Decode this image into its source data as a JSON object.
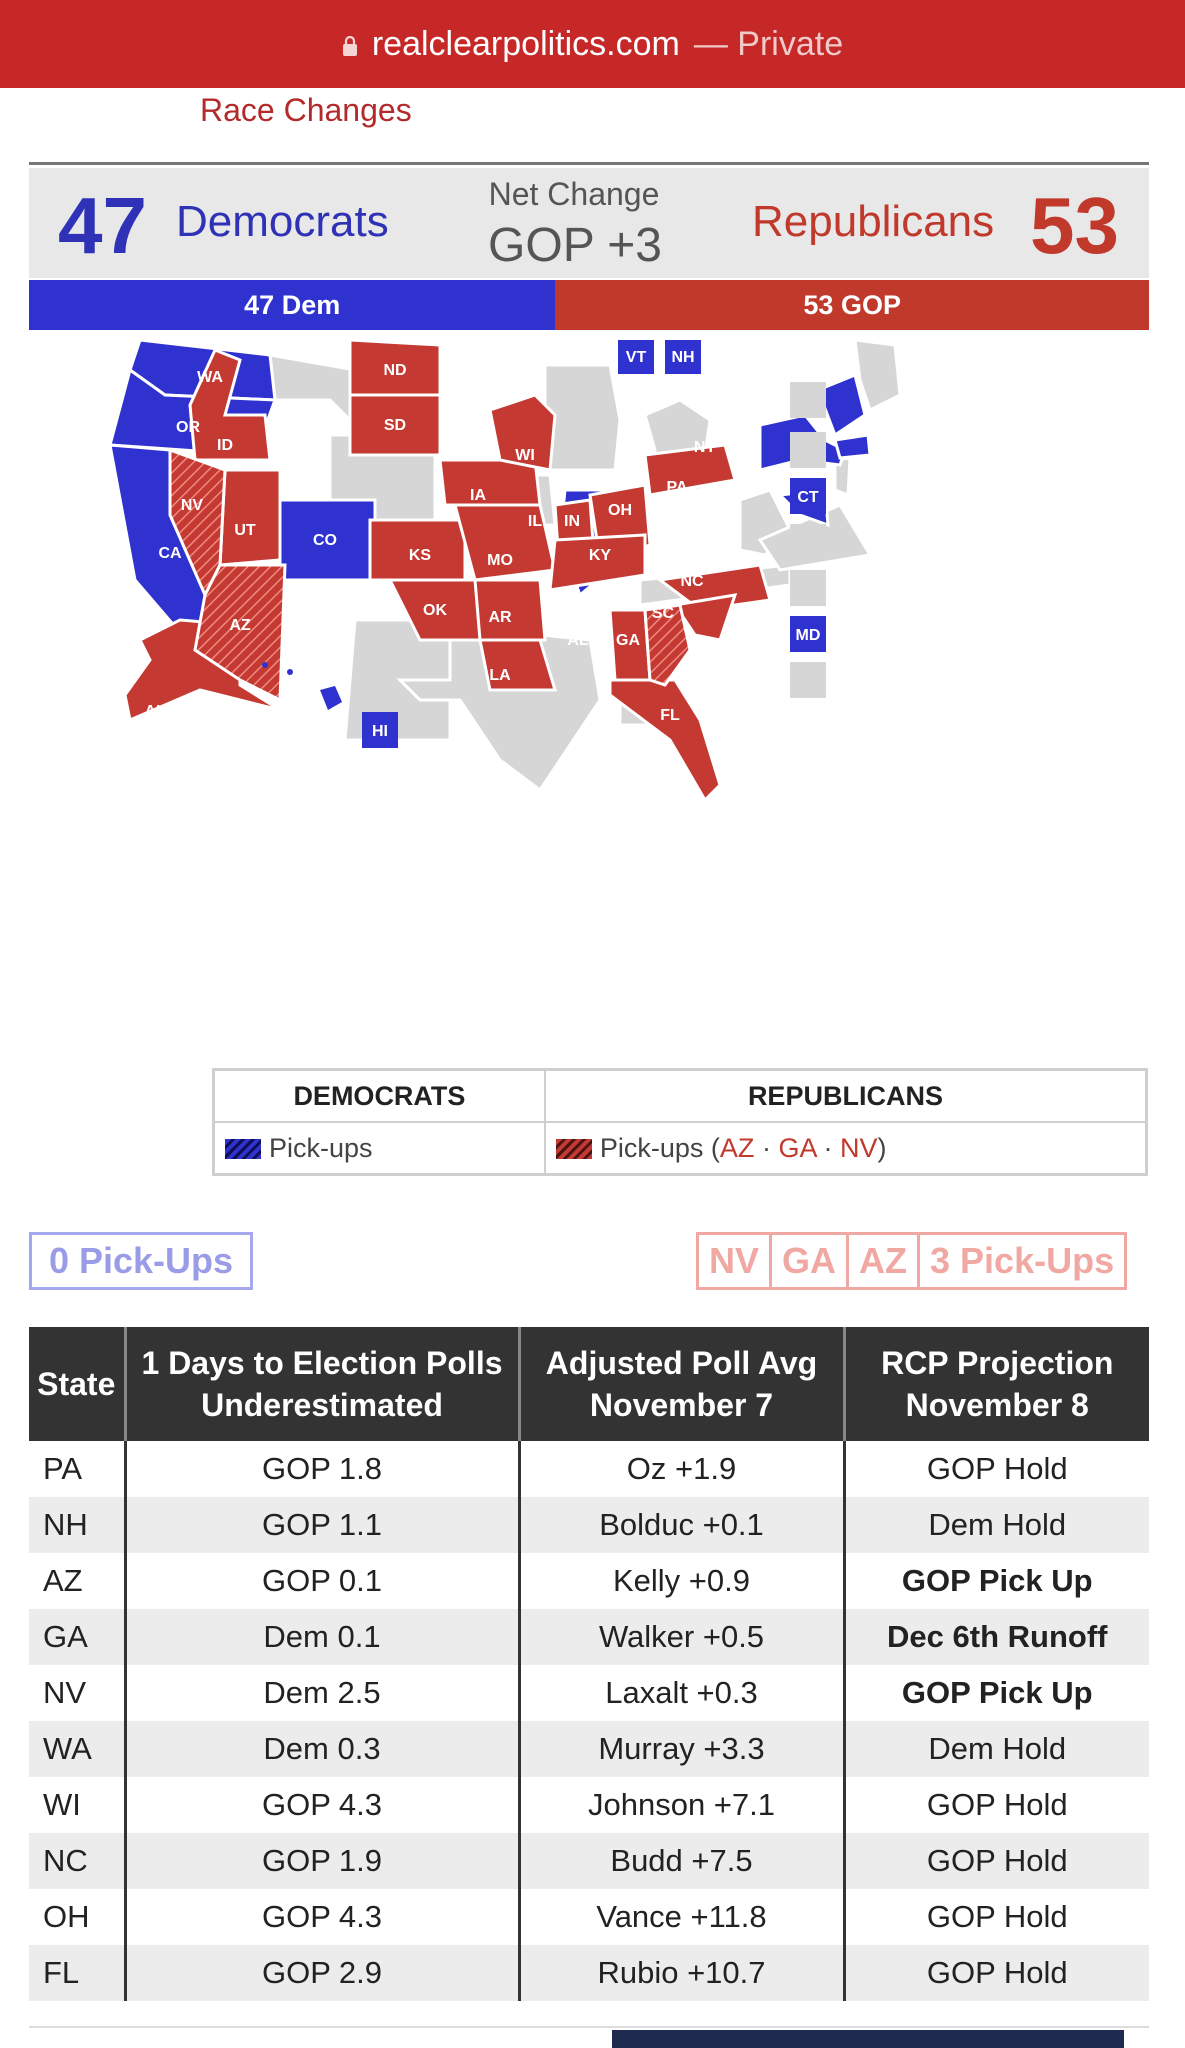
{
  "browser": {
    "url": "realclearpolitics.com",
    "mode": "— Private"
  },
  "header": {
    "race_changes": "Race Changes"
  },
  "summary": {
    "dem_count": "47",
    "dem_label": "Democrats",
    "net_label": "Net Change",
    "net_value": "GOP +3",
    "rep_label": "Republicans",
    "rep_count": "53",
    "bar_dem": "47 Dem",
    "bar_rep": "53 GOP",
    "dem_seats": 47,
    "rep_seats": 53
  },
  "map": {
    "colors": {
      "dem": "#2f32cf",
      "gop": "#c43a32",
      "none": "#d6d6d6"
    },
    "labels": [
      "WA",
      "OR",
      "CA",
      "ID",
      "NV",
      "UT",
      "AZ",
      "CO",
      "ND",
      "SD",
      "KS",
      "OK",
      "IA",
      "MO",
      "AR",
      "LA",
      "WI",
      "IL",
      "IN",
      "OH",
      "KY",
      "PA",
      "NY",
      "NC",
      "SC",
      "GA",
      "AL",
      "FL",
      "AK",
      "HI",
      "VT",
      "NH",
      "CT",
      "MD"
    ]
  },
  "legend": {
    "dem_header": "DEMOCRATS",
    "rep_header": "REPUBLICANS",
    "dem_pickups": "Pick-ups",
    "rep_pickups_prefix": "Pick-ups (",
    "rep_pickups_az": "AZ",
    "sep1": " · ",
    "rep_pickups_ga": "GA",
    "sep2": " · ",
    "rep_pickups_nv": "NV",
    "rep_pickups_suffix": ")"
  },
  "pickups": {
    "dem": "0 Pick-Ups",
    "rep_states": [
      "NV",
      "GA",
      "AZ"
    ],
    "rep": "3 Pick-Ups"
  },
  "table": {
    "headers": [
      "State",
      "1 Days to Election Polls Underestimated",
      "Adjusted Poll Avg November 7",
      "RCP Projection November 8"
    ],
    "rows": [
      {
        "state": "PA",
        "under": "GOP 1.8",
        "poll": "Oz +1.9",
        "proj": "GOP Hold"
      },
      {
        "state": "NH",
        "under": "GOP 1.1",
        "poll": "Bolduc +0.1",
        "proj": "Dem Hold"
      },
      {
        "state": "AZ",
        "under": "GOP 0.1",
        "poll": "Kelly +0.9",
        "proj": "GOP Pick Up"
      },
      {
        "state": "GA",
        "under": "Dem 0.1",
        "poll": "Walker +0.5",
        "proj": "Dec 6th Runoff"
      },
      {
        "state": "NV",
        "under": "Dem 2.5",
        "poll": "Laxalt +0.3",
        "proj": "GOP Pick Up"
      },
      {
        "state": "WA",
        "under": "Dem 0.3",
        "poll": "Murray +3.3",
        "proj": "Dem Hold"
      },
      {
        "state": "WI",
        "under": "GOP 4.3",
        "poll": "Johnson +7.1",
        "proj": "GOP Hold"
      },
      {
        "state": "NC",
        "under": "GOP 1.9",
        "poll": "Budd +7.5",
        "proj": "GOP Hold"
      },
      {
        "state": "OH",
        "under": "GOP 4.3",
        "poll": "Vance +11.8",
        "proj": "GOP Hold"
      },
      {
        "state": "FL",
        "under": "GOP 2.9",
        "poll": "Rubio +10.7",
        "proj": "GOP Hold"
      }
    ]
  }
}
